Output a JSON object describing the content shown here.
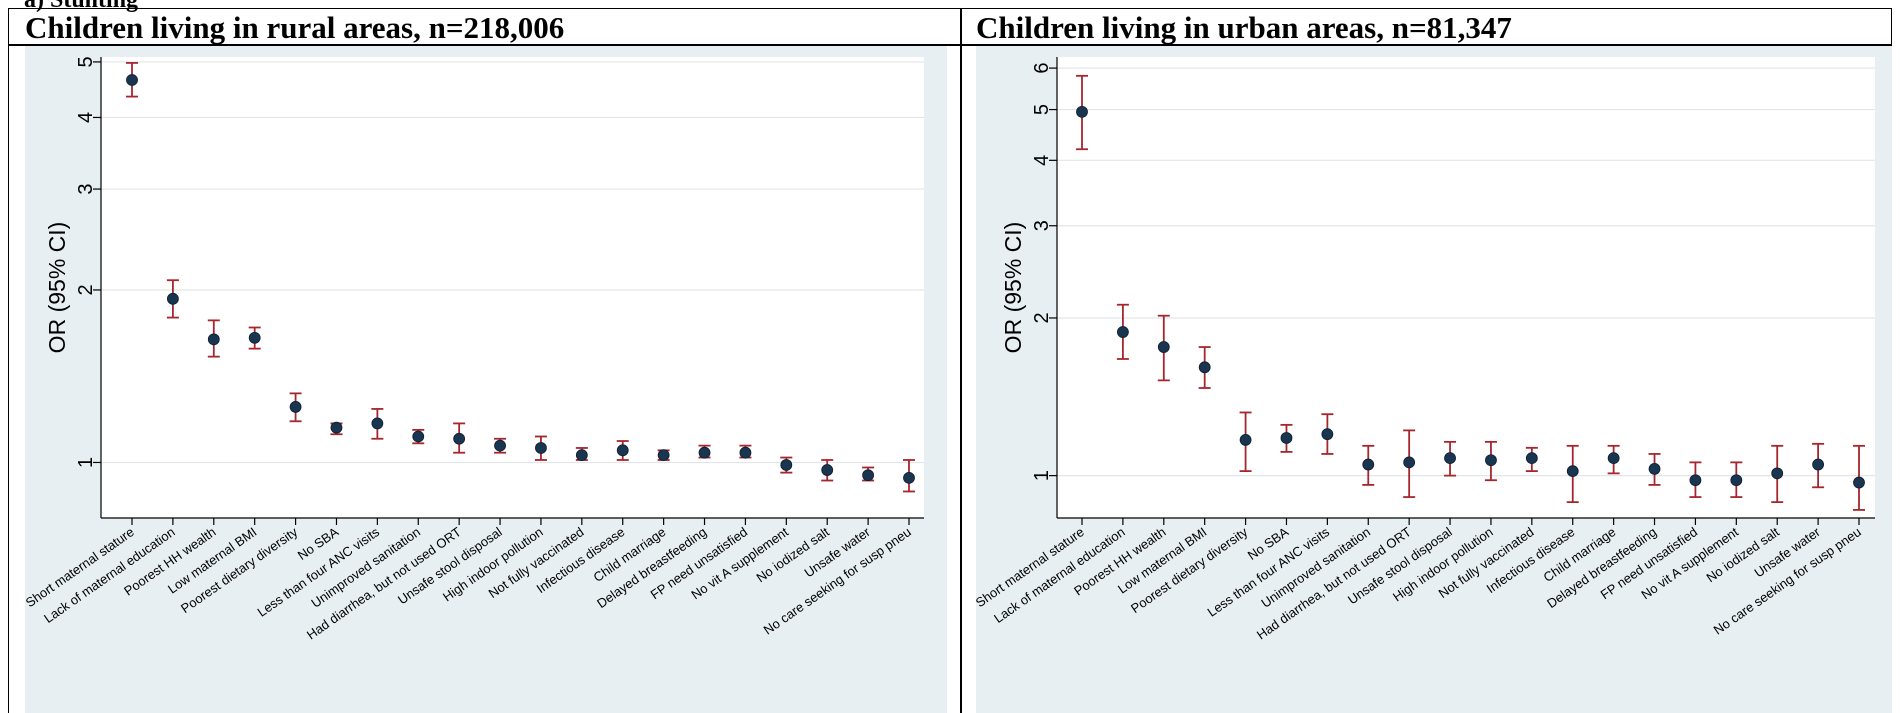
{
  "header_fragment": "a) Stunting",
  "panels": [
    {
      "title": "Children living in rural areas, n=218,006"
    },
    {
      "title": "Children living in urban areas, n=81,347"
    }
  ],
  "colors": {
    "ci": "#a6262d",
    "point": "#1a3550",
    "background": "#e8eff2"
  },
  "chart_data": [
    {
      "type": "scatter",
      "title": "Children living in rural areas, n=218,006",
      "ylabel": "OR (95% CI)",
      "yscale": "log",
      "ylim": [
        0.8,
        5.1
      ],
      "yticks": [
        1,
        2,
        3,
        4,
        5
      ],
      "grid": true,
      "categories": [
        "Short maternal stature",
        "Lack of maternal education",
        "Poorest HH wealth",
        "Low maternal BMI",
        "Poorest dietary diversity",
        "No SBA",
        "Less than four ANC visits",
        "Unimproved sanitation",
        "Had diarrhea, but not used ORT",
        "Unsafe stool disposal",
        "High indoor pollution",
        "Not fully vaccinated",
        "Infectious disease",
        "Child marriage",
        "Delayed breastfeeding",
        "FP need unsatisfied",
        "No vit A supplement",
        "No iodized salt",
        "Unsafe water",
        "No care seeking for susp pneu"
      ],
      "or": [
        4.65,
        1.93,
        1.64,
        1.65,
        1.25,
        1.15,
        1.17,
        1.11,
        1.1,
        1.07,
        1.06,
        1.03,
        1.05,
        1.03,
        1.04,
        1.04,
        0.99,
        0.97,
        0.95,
        0.94
      ],
      "lower": [
        4.35,
        1.79,
        1.53,
        1.58,
        1.18,
        1.12,
        1.1,
        1.08,
        1.04,
        1.04,
        1.01,
        1.01,
        1.01,
        1.01,
        1.02,
        1.02,
        0.96,
        0.93,
        0.93,
        0.89
      ],
      "upper": [
        4.98,
        2.08,
        1.77,
        1.72,
        1.32,
        1.17,
        1.24,
        1.14,
        1.17,
        1.1,
        1.11,
        1.06,
        1.09,
        1.05,
        1.07,
        1.07,
        1.02,
        1.01,
        0.98,
        1.01
      ]
    },
    {
      "type": "scatter",
      "title": "Children living in urban areas, n=81,347",
      "ylabel": "OR (95% CI)",
      "yscale": "log",
      "ylim": [
        0.83,
        6.3
      ],
      "yticks": [
        1,
        2,
        3,
        4,
        5,
        6
      ],
      "grid": true,
      "categories": [
        "Short maternal stature",
        "Lack of maternal education",
        "Poorest HH wealth",
        "Low maternal BMI",
        "Poorest dietary diversity",
        "No SBA",
        "Less than four ANC visits",
        "Unimproved sanitation",
        "Had diarrhea, but not used ORT",
        "Unsafe stool disposal",
        "High indoor pollution",
        "Not fully vaccinated",
        "Infectious disease",
        "Child marriage",
        "Delayed breastfeeding",
        "FP need unsatisfied",
        "No vit A supplement",
        "No iodized salt",
        "Unsafe water",
        "No care seeking for susp pneu"
      ],
      "or": [
        4.95,
        1.88,
        1.76,
        1.61,
        1.17,
        1.18,
        1.2,
        1.05,
        1.06,
        1.08,
        1.07,
        1.08,
        1.02,
        1.08,
        1.03,
        0.98,
        0.98,
        1.01,
        1.05,
        0.97
      ],
      "lower": [
        4.2,
        1.67,
        1.52,
        1.47,
        1.02,
        1.11,
        1.1,
        0.96,
        0.91,
        1.0,
        0.98,
        1.02,
        0.89,
        1.01,
        0.96,
        0.91,
        0.91,
        0.89,
        0.95,
        0.86
      ],
      "upper": [
        5.8,
        2.12,
        2.02,
        1.76,
        1.32,
        1.25,
        1.31,
        1.14,
        1.22,
        1.16,
        1.16,
        1.13,
        1.14,
        1.14,
        1.1,
        1.06,
        1.06,
        1.14,
        1.15,
        1.14
      ]
    }
  ]
}
